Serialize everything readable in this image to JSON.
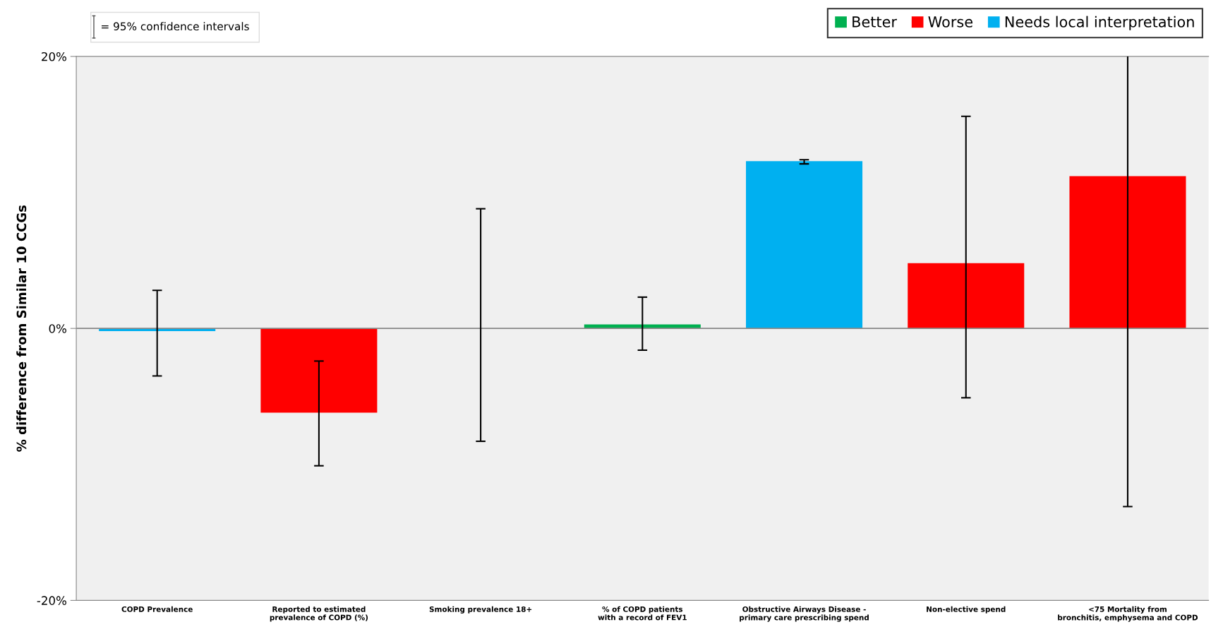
{
  "chart_data": {
    "type": "bar",
    "ylabel": "% difference from Similar 10 CCGs",
    "categories": [
      "COPD Prevalence",
      "Reported to estimated prevalence of COPD (%)",
      "Smoking prevalence 18+",
      "% of COPD patients with a record of FEV1",
      "Obstructive Airways Disease - primary care prescribing spend",
      "Non-elective spend",
      "<75 Mortality from bronchitis, emphysema and COPD"
    ],
    "series": [
      {
        "name": "Better",
        "color": "#00b050",
        "values": [
          null,
          null,
          null,
          0.3,
          null,
          null,
          null
        ],
        "errors": [
          null,
          null,
          null,
          [
            -1.6,
            2.3
          ],
          null,
          null,
          null
        ]
      },
      {
        "name": "Worse",
        "color": "#ff0000",
        "values": [
          null,
          -6.2,
          null,
          null,
          null,
          4.8,
          11.2
        ],
        "errors": [
          null,
          [
            -10.1,
            -2.4
          ],
          null,
          null,
          null,
          [
            -5.1,
            15.6
          ],
          [
            -13.1,
            20
          ]
        ]
      },
      {
        "name": "Needs local interpretation",
        "color": "#00b0f0",
        "values": [
          -0.2,
          null,
          0,
          null,
          12.3,
          null,
          null
        ],
        "errors": [
          [
            -3.5,
            2.8
          ],
          null,
          [
            -8.3,
            8.8
          ],
          null,
          [
            12.1,
            12.4
          ],
          null,
          null
        ]
      }
    ],
    "ylim": [
      -20,
      20
    ],
    "yticks": [
      {
        "value": -20,
        "label": "-20%"
      },
      {
        "value": 0,
        "label": "0%"
      },
      {
        "value": 20,
        "label": "20%"
      }
    ],
    "legend": "top right",
    "annotations": [
      "= 95% confidence intervals"
    ]
  }
}
